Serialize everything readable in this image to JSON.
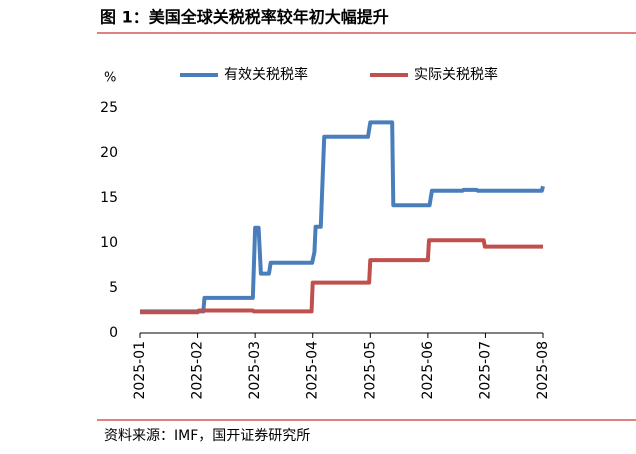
{
  "chart_data": {
    "type": "line",
    "title": "图 1：美国全球关税税率较年初大幅提升",
    "y_unit": "%",
    "source": "资料来源：IMF，国开证券研究所",
    "xlim": [
      0,
      7
    ],
    "xticks": [
      {
        "value": 0,
        "label": "2025-01"
      },
      {
        "value": 1,
        "label": "2025-02"
      },
      {
        "value": 2,
        "label": "2025-03"
      },
      {
        "value": 3,
        "label": "2025-04"
      },
      {
        "value": 4,
        "label": "2025-05"
      },
      {
        "value": 5,
        "label": "2025-06"
      },
      {
        "value": 6,
        "label": "2025-07"
      },
      {
        "value": 7,
        "label": "2025-08"
      }
    ],
    "ylim": [
      0,
      25
    ],
    "yticks": [
      0,
      5,
      10,
      15,
      20,
      25
    ],
    "legend": "top",
    "series": [
      {
        "name": "有效关税税率",
        "color": "#4a7ebb",
        "x": [
          0,
          1.1,
          1.12,
          1.96,
          2.0,
          2.06,
          2.1,
          2.24,
          2.27,
          2.99,
          3.03,
          3.05,
          3.14,
          3.2,
          3.96,
          4.0,
          4.38,
          4.4,
          5.03,
          5.07,
          5.6,
          5.62,
          5.85,
          5.87,
          6.98,
          7.0
        ],
        "values": [
          2.4,
          2.4,
          3.9,
          3.9,
          11.7,
          11.7,
          6.6,
          6.6,
          7.8,
          7.8,
          9.0,
          11.8,
          11.8,
          21.8,
          21.8,
          23.4,
          23.4,
          14.2,
          14.2,
          15.8,
          15.8,
          15.9,
          15.9,
          15.8,
          15.8,
          16.3
        ]
      },
      {
        "name": "实际关税税率",
        "color": "#c0504d",
        "x": [
          0,
          1.0,
          1.02,
          1.96,
          1.98,
          2.98,
          3.0,
          3.98,
          4.0,
          5.0,
          5.02,
          5.97,
          5.99,
          7.0
        ],
        "values": [
          2.3,
          2.3,
          2.5,
          2.5,
          2.4,
          2.4,
          5.6,
          5.6,
          8.1,
          8.1,
          10.3,
          10.3,
          9.6,
          9.6
        ]
      }
    ]
  }
}
